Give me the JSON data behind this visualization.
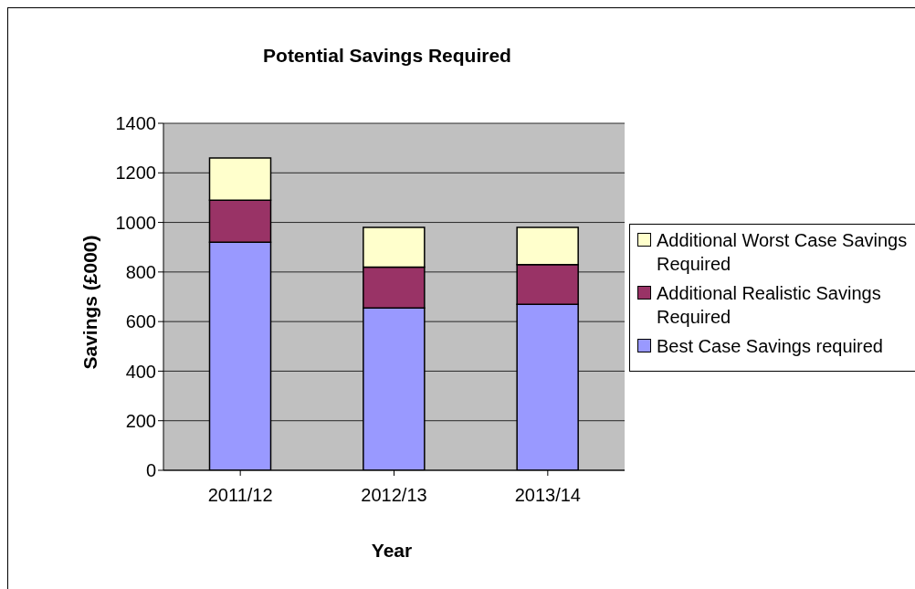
{
  "chart_data": {
    "type": "bar",
    "title": "Potential Savings Required",
    "xlabel": "Year",
    "ylabel": "Savings (£000)",
    "categories": [
      "2011/12",
      "2012/13",
      "2013/14"
    ],
    "series": [
      {
        "name": "Best Case Savings required",
        "color": "#9999ff",
        "values": [
          920,
          655,
          670
        ]
      },
      {
        "name": "Additional Realistic Savings Required",
        "color": "#993366",
        "values": [
          170,
          165,
          160
        ]
      },
      {
        "name": "Additional Worst Case Savings Required",
        "color": "#ffffcc",
        "values": [
          170,
          160,
          150
        ]
      }
    ],
    "stacked": true,
    "ylim": [
      0,
      1400
    ],
    "yticks": [
      0,
      200,
      400,
      600,
      800,
      1000,
      1200,
      1400
    ],
    "grid": "y",
    "legend": "right"
  }
}
